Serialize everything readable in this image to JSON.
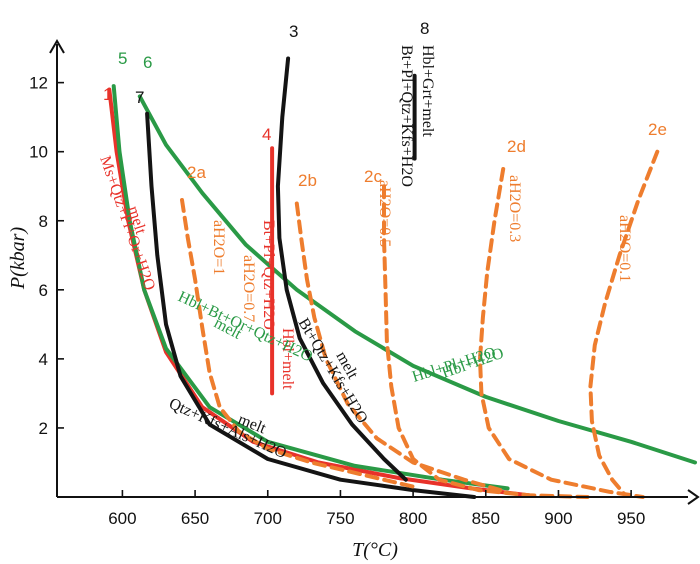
{
  "chart_data": {
    "type": "line",
    "xlabel": "T(°C)",
    "ylabel": "P(kbar)",
    "xlim": [
      555,
      985
    ],
    "ylim": [
      0,
      12.8
    ],
    "x_ticks": [
      600,
      650,
      700,
      750,
      800,
      850,
      900,
      950
    ],
    "y_ticks": [
      2,
      4,
      6,
      8,
      10,
      12
    ],
    "grid": false,
    "colors": {
      "red": "#e8322a",
      "green": "#2a9a46",
      "black": "#141414",
      "orange": "#ee7d2e"
    },
    "series": [
      {
        "name": "1",
        "color": "#e8322a",
        "style": "solid",
        "x": [
          591,
          596,
          604,
          615,
          630,
          655,
          690,
          735,
          790,
          840,
          880
        ],
        "y": [
          11.8,
          10.0,
          8.0,
          6.0,
          4.2,
          2.6,
          1.6,
          1.0,
          0.55,
          0.25,
          0.05
        ]
      },
      {
        "name": "5",
        "color": "#2a9a46",
        "style": "solid",
        "x": [
          594,
          598,
          605,
          615,
          630,
          660,
          700,
          760,
          820,
          865
        ],
        "y": [
          11.9,
          10.0,
          8.0,
          6.0,
          4.3,
          2.6,
          1.6,
          0.9,
          0.5,
          0.25
        ]
      },
      {
        "name": "6",
        "color": "#2a9a46",
        "style": "solid",
        "x": [
          612,
          630,
          655,
          685,
          720,
          760,
          800,
          850,
          900,
          950,
          995
        ],
        "y": [
          11.6,
          10.2,
          8.8,
          7.3,
          6.0,
          4.8,
          3.8,
          2.9,
          2.2,
          1.6,
          1.0
        ]
      },
      {
        "name": "7",
        "color": "#141414",
        "style": "solid",
        "x": [
          617,
          620,
          624,
          630,
          640,
          660,
          700,
          750,
          800,
          842
        ],
        "y": [
          11.1,
          9.0,
          7.0,
          5.0,
          3.5,
          2.1,
          1.1,
          0.5,
          0.2,
          0.0
        ]
      },
      {
        "name": "3",
        "color": "#141414",
        "style": "solid",
        "x": [
          714,
          710,
          707,
          708,
          713,
          722,
          738,
          758,
          780,
          795
        ],
        "y": [
          12.7,
          11.0,
          9.0,
          7.5,
          6.0,
          4.6,
          3.3,
          2.1,
          1.1,
          0.5
        ]
      },
      {
        "name": "4",
        "color": "#e8322a",
        "style": "solid",
        "x": [
          703,
          703
        ],
        "y": [
          10.1,
          3.0
        ]
      },
      {
        "name": "8",
        "color": "#141414",
        "style": "solid",
        "x": [
          801,
          801
        ],
        "y": [
          12.2,
          9.8
        ]
      },
      {
        "name": "2a",
        "color": "#ee7d2e",
        "style": "dashed",
        "x": [
          641,
          645,
          650,
          655,
          660,
          667,
          680,
          700,
          730,
          770,
          800
        ],
        "y": [
          8.6,
          7.5,
          6.3,
          4.9,
          3.6,
          2.6,
          1.9,
          1.4,
          1.0,
          0.6,
          0.3
        ]
      },
      {
        "name": "2b",
        "color": "#ee7d2e",
        "style": "dashed",
        "x": [
          720,
          723,
          727,
          732,
          740,
          755,
          775,
          800,
          835,
          860
        ],
        "y": [
          8.5,
          7.5,
          6.3,
          5.2,
          4.0,
          2.7,
          1.7,
          1.0,
          0.5,
          0.2
        ]
      },
      {
        "name": "2c",
        "color": "#ee7d2e",
        "style": "dashed",
        "x": [
          780,
          780,
          781,
          782,
          785,
          790,
          800,
          818,
          845,
          880,
          920
        ],
        "y": [
          9.0,
          7.5,
          6.0,
          4.5,
          3.2,
          2.0,
          1.1,
          0.5,
          0.2,
          0.05,
          0.0
        ]
      },
      {
        "name": "2d",
        "color": "#ee7d2e",
        "style": "dashed",
        "x": [
          862,
          856,
          851,
          848,
          846,
          847,
          852,
          866,
          895,
          935,
          958
        ],
        "y": [
          9.5,
          8.0,
          6.5,
          5.2,
          4.0,
          3.0,
          2.0,
          1.1,
          0.5,
          0.15,
          0.0
        ]
      },
      {
        "name": "2e",
        "color": "#ee7d2e",
        "style": "dashed",
        "x": [
          968,
          955,
          942,
          932,
          925,
          922,
          923,
          928,
          937,
          946
        ],
        "y": [
          10.0,
          8.6,
          7.0,
          5.6,
          4.4,
          3.2,
          2.2,
          1.2,
          0.5,
          0.05
        ]
      }
    ],
    "annotations": [
      {
        "text": "Ms+Qtz+Pl+Or+H2O",
        "color": "#e8322a"
      },
      {
        "text": "melt",
        "color": "#e8322a"
      },
      {
        "text": "aH2O=1",
        "color": "#ee7d2e"
      },
      {
        "text": "aH2O=0.7",
        "color": "#ee7d2e"
      },
      {
        "text": "aH2O=0.5",
        "color": "#ee7d2e"
      },
      {
        "text": "aH2O=0.3",
        "color": "#ee7d2e"
      },
      {
        "text": "aH2O=0.1",
        "color": "#ee7d2e"
      },
      {
        "text": "Bt+Pl+Qtz+H2O",
        "color": "#e8322a"
      },
      {
        "text": "Hbl+melt",
        "color": "#e8322a"
      },
      {
        "text": "Bt+Pl+Qtz+Kfs+H2O",
        "color": "#141414"
      },
      {
        "text": "Hbl+Grt+melt",
        "color": "#141414"
      },
      {
        "text": "Bt+Qtz+Kfs+H2O",
        "color": "#141414"
      },
      {
        "text": "melt",
        "color": "#141414"
      },
      {
        "text": "Hbl+Bt+Or+Qtz+H2O",
        "color": "#2a9a46"
      },
      {
        "text": "melt",
        "color": "#2a9a46"
      },
      {
        "text": "melt",
        "color": "#141414"
      },
      {
        "text": "Qtz+Kfs+Als+H2O",
        "color": "#141414"
      },
      {
        "text": "Hbl+H2O",
        "color": "#2a9a46"
      },
      {
        "text": "Hbl+Pl+H2O",
        "color": "#2a9a46"
      }
    ]
  }
}
